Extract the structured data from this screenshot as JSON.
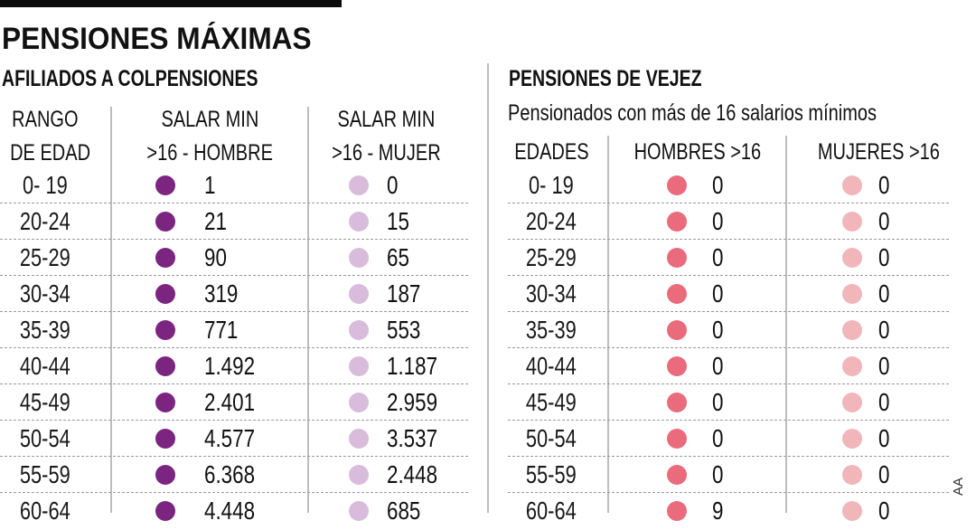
{
  "header": {
    "title": "PENSIONES MÁXIMAS"
  },
  "left_table": {
    "subtitle": "AFILIADOS A COLPENSIONES",
    "columns": {
      "age": [
        "RANGO",
        "DE EDAD"
      ],
      "men": [
        "SALAR MIN",
        ">16 - HOMBRE"
      ],
      "women": [
        "SALAR MIN",
        ">16 - MUJER"
      ]
    },
    "colors": {
      "men": "#7b2480",
      "women": "#d9bcdc"
    },
    "rows": [
      {
        "age": "0- 19",
        "men": "1",
        "women": "0"
      },
      {
        "age": "20-24",
        "men": "21",
        "women": "15"
      },
      {
        "age": "25-29",
        "men": "90",
        "women": "65"
      },
      {
        "age": "30-34",
        "men": "319",
        "women": "187"
      },
      {
        "age": "35-39",
        "men": "771",
        "women": "553"
      },
      {
        "age": "40-44",
        "men": "1.492",
        "women": "1.187"
      },
      {
        "age": "45-49",
        "men": "2.401",
        "women": "2.959"
      },
      {
        "age": "50-54",
        "men": "4.577",
        "women": "3.537"
      },
      {
        "age": "55-59",
        "men": "6.368",
        "women": "2.448"
      },
      {
        "age": "60-64",
        "men": "4.448",
        "women": "685"
      }
    ]
  },
  "right_table": {
    "subtitle": "PENSIONES DE  VEJEZ",
    "description": "Pensionados con más de 16 salarios mínimos",
    "columns": {
      "age": "EDADES",
      "men": "HOMBRES >16",
      "women": "MUJERES >16"
    },
    "colors": {
      "men": "#e96b7c",
      "women": "#f0b6ba"
    },
    "rows": [
      {
        "age": "0- 19",
        "men": "0",
        "women": "0"
      },
      {
        "age": "20-24",
        "men": "0",
        "women": "0"
      },
      {
        "age": "25-29",
        "men": "0",
        "women": "0"
      },
      {
        "age": "30-34",
        "men": "0",
        "women": "0"
      },
      {
        "age": "35-39",
        "men": "0",
        "women": "0"
      },
      {
        "age": "40-44",
        "men": "0",
        "women": "0"
      },
      {
        "age": "45-49",
        "men": "0",
        "women": "0"
      },
      {
        "age": "50-54",
        "men": "0",
        "women": "0"
      },
      {
        "age": "55-59",
        "men": "0",
        "women": "0"
      },
      {
        "age": "60-64",
        "men": "9",
        "women": "0"
      }
    ]
  },
  "credit": "AA"
}
